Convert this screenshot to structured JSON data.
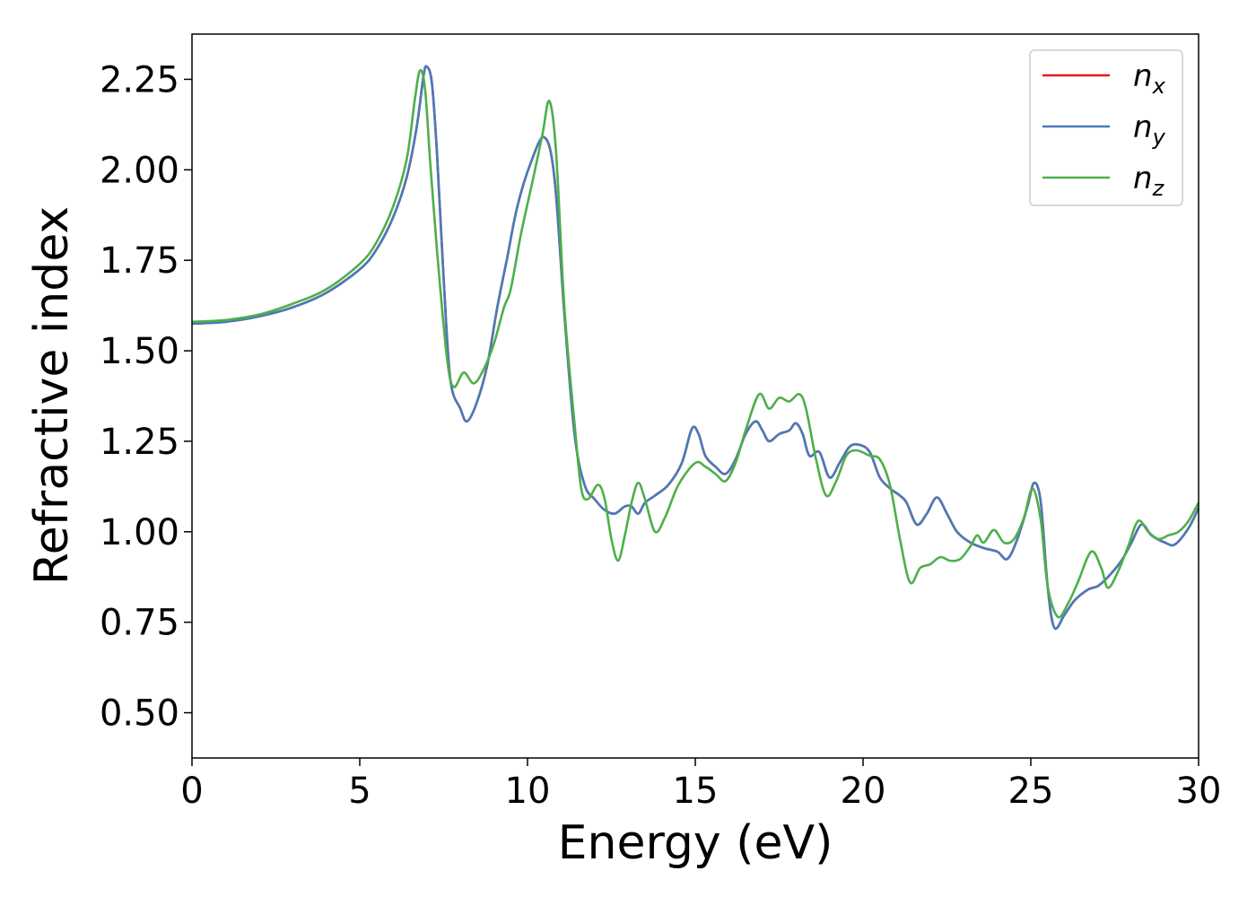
{
  "chart_data": {
    "type": "line",
    "title": "",
    "xlabel": "Energy (eV)",
    "ylabel": "Refractive index",
    "xlim": [
      0,
      30
    ],
    "ylim": [
      0.375,
      2.375
    ],
    "x_ticks": [
      "0",
      "5",
      "10",
      "15",
      "20",
      "25",
      "30"
    ],
    "y_ticks": [
      "0.50",
      "0.75",
      "1.00",
      "1.25",
      "1.50",
      "1.75",
      "2.00",
      "2.25"
    ],
    "grid": false,
    "legend_position": "top-right",
    "series": [
      {
        "name": "n",
        "subscript": "x",
        "color": "#e41a1c",
        "points": [
          [
            0,
            1.575
          ],
          [
            1,
            1.58
          ],
          [
            2,
            1.595
          ],
          [
            3,
            1.62
          ],
          [
            4,
            1.66
          ],
          [
            5,
            1.725
          ],
          [
            5.5,
            1.78
          ],
          [
            6,
            1.87
          ],
          [
            6.4,
            1.98
          ],
          [
            6.7,
            2.12
          ],
          [
            6.9,
            2.26
          ],
          [
            7,
            2.285
          ],
          [
            7.15,
            2.24
          ],
          [
            7.3,
            2.05
          ],
          [
            7.5,
            1.7
          ],
          [
            7.7,
            1.42
          ],
          [
            8,
            1.34
          ],
          [
            8.2,
            1.305
          ],
          [
            8.5,
            1.36
          ],
          [
            8.8,
            1.46
          ],
          [
            9.1,
            1.62
          ],
          [
            9.4,
            1.76
          ],
          [
            9.7,
            1.9
          ],
          [
            10.1,
            2.02
          ],
          [
            10.5,
            2.09
          ],
          [
            10.8,
            1.98
          ],
          [
            11.1,
            1.6
          ],
          [
            11.4,
            1.27
          ],
          [
            11.7,
            1.13
          ],
          [
            12,
            1.09
          ],
          [
            12.3,
            1.06
          ],
          [
            12.6,
            1.05
          ],
          [
            12.9,
            1.07
          ],
          [
            13.1,
            1.07
          ],
          [
            13.3,
            1.05
          ],
          [
            13.5,
            1.08
          ],
          [
            13.8,
            1.1
          ],
          [
            14.2,
            1.13
          ],
          [
            14.6,
            1.19
          ],
          [
            14.9,
            1.285
          ],
          [
            15.1,
            1.27
          ],
          [
            15.3,
            1.21
          ],
          [
            15.6,
            1.18
          ],
          [
            15.9,
            1.16
          ],
          [
            16.2,
            1.2
          ],
          [
            16.5,
            1.27
          ],
          [
            16.8,
            1.305
          ],
          [
            17,
            1.28
          ],
          [
            17.2,
            1.25
          ],
          [
            17.5,
            1.27
          ],
          [
            17.8,
            1.28
          ],
          [
            18,
            1.3
          ],
          [
            18.2,
            1.27
          ],
          [
            18.4,
            1.21
          ],
          [
            18.7,
            1.22
          ],
          [
            19,
            1.15
          ],
          [
            19.3,
            1.19
          ],
          [
            19.6,
            1.235
          ],
          [
            19.9,
            1.24
          ],
          [
            20.2,
            1.22
          ],
          [
            20.5,
            1.15
          ],
          [
            20.8,
            1.12
          ],
          [
            21.1,
            1.1
          ],
          [
            21.3,
            1.08
          ],
          [
            21.6,
            1.02
          ],
          [
            21.9,
            1.05
          ],
          [
            22.2,
            1.095
          ],
          [
            22.5,
            1.05
          ],
          [
            22.8,
            1.0
          ],
          [
            23.2,
            0.97
          ],
          [
            23.6,
            0.955
          ],
          [
            24,
            0.945
          ],
          [
            24.3,
            0.925
          ],
          [
            24.6,
            0.98
          ],
          [
            24.9,
            1.07
          ],
          [
            25.1,
            1.135
          ],
          [
            25.3,
            1.08
          ],
          [
            25.5,
            0.85
          ],
          [
            25.7,
            0.735
          ],
          [
            26,
            0.77
          ],
          [
            26.3,
            0.81
          ],
          [
            26.7,
            0.84
          ],
          [
            27,
            0.85
          ],
          [
            27.3,
            0.875
          ],
          [
            27.7,
            0.92
          ],
          [
            28,
            0.97
          ],
          [
            28.3,
            1.02
          ],
          [
            28.6,
            0.99
          ],
          [
            29,
            0.97
          ],
          [
            29.3,
            0.965
          ],
          [
            29.7,
            1.01
          ],
          [
            30,
            1.065
          ]
        ]
      },
      {
        "name": "n",
        "subscript": "y",
        "color": "#4a7ab8",
        "points": [
          [
            0,
            1.575
          ],
          [
            1,
            1.58
          ],
          [
            2,
            1.595
          ],
          [
            3,
            1.62
          ],
          [
            4,
            1.66
          ],
          [
            5,
            1.725
          ],
          [
            5.5,
            1.78
          ],
          [
            6,
            1.87
          ],
          [
            6.4,
            1.98
          ],
          [
            6.7,
            2.12
          ],
          [
            6.9,
            2.26
          ],
          [
            7,
            2.285
          ],
          [
            7.15,
            2.24
          ],
          [
            7.3,
            2.05
          ],
          [
            7.5,
            1.7
          ],
          [
            7.7,
            1.42
          ],
          [
            8,
            1.34
          ],
          [
            8.2,
            1.305
          ],
          [
            8.5,
            1.36
          ],
          [
            8.8,
            1.46
          ],
          [
            9.1,
            1.62
          ],
          [
            9.4,
            1.76
          ],
          [
            9.7,
            1.9
          ],
          [
            10.1,
            2.02
          ],
          [
            10.5,
            2.09
          ],
          [
            10.8,
            1.98
          ],
          [
            11.1,
            1.6
          ],
          [
            11.4,
            1.27
          ],
          [
            11.7,
            1.13
          ],
          [
            12,
            1.09
          ],
          [
            12.3,
            1.06
          ],
          [
            12.6,
            1.05
          ],
          [
            12.9,
            1.07
          ],
          [
            13.1,
            1.07
          ],
          [
            13.3,
            1.05
          ],
          [
            13.5,
            1.08
          ],
          [
            13.8,
            1.1
          ],
          [
            14.2,
            1.13
          ],
          [
            14.6,
            1.19
          ],
          [
            14.9,
            1.285
          ],
          [
            15.1,
            1.27
          ],
          [
            15.3,
            1.21
          ],
          [
            15.6,
            1.18
          ],
          [
            15.9,
            1.16
          ],
          [
            16.2,
            1.2
          ],
          [
            16.5,
            1.27
          ],
          [
            16.8,
            1.305
          ],
          [
            17,
            1.28
          ],
          [
            17.2,
            1.25
          ],
          [
            17.5,
            1.27
          ],
          [
            17.8,
            1.28
          ],
          [
            18,
            1.3
          ],
          [
            18.2,
            1.27
          ],
          [
            18.4,
            1.21
          ],
          [
            18.7,
            1.22
          ],
          [
            19,
            1.15
          ],
          [
            19.3,
            1.19
          ],
          [
            19.6,
            1.235
          ],
          [
            19.9,
            1.24
          ],
          [
            20.2,
            1.22
          ],
          [
            20.5,
            1.15
          ],
          [
            20.8,
            1.12
          ],
          [
            21.1,
            1.1
          ],
          [
            21.3,
            1.08
          ],
          [
            21.6,
            1.02
          ],
          [
            21.9,
            1.05
          ],
          [
            22.2,
            1.095
          ],
          [
            22.5,
            1.05
          ],
          [
            22.8,
            1.0
          ],
          [
            23.2,
            0.97
          ],
          [
            23.6,
            0.955
          ],
          [
            24,
            0.945
          ],
          [
            24.3,
            0.925
          ],
          [
            24.6,
            0.98
          ],
          [
            24.9,
            1.07
          ],
          [
            25.1,
            1.135
          ],
          [
            25.3,
            1.08
          ],
          [
            25.5,
            0.85
          ],
          [
            25.7,
            0.735
          ],
          [
            26,
            0.77
          ],
          [
            26.3,
            0.81
          ],
          [
            26.7,
            0.84
          ],
          [
            27,
            0.85
          ],
          [
            27.3,
            0.875
          ],
          [
            27.7,
            0.92
          ],
          [
            28,
            0.97
          ],
          [
            28.3,
            1.02
          ],
          [
            28.6,
            0.99
          ],
          [
            29,
            0.97
          ],
          [
            29.3,
            0.965
          ],
          [
            29.7,
            1.01
          ],
          [
            30,
            1.065
          ]
        ]
      },
      {
        "name": "n",
        "subscript": "z",
        "color": "#4daf4a",
        "points": [
          [
            0,
            1.58
          ],
          [
            1,
            1.585
          ],
          [
            2,
            1.6
          ],
          [
            3,
            1.63
          ],
          [
            4,
            1.67
          ],
          [
            5,
            1.74
          ],
          [
            5.5,
            1.8
          ],
          [
            6,
            1.9
          ],
          [
            6.4,
            2.03
          ],
          [
            6.65,
            2.2
          ],
          [
            6.8,
            2.275
          ],
          [
            6.95,
            2.22
          ],
          [
            7.1,
            2.02
          ],
          [
            7.3,
            1.78
          ],
          [
            7.6,
            1.48
          ],
          [
            7.8,
            1.4
          ],
          [
            8.1,
            1.44
          ],
          [
            8.4,
            1.41
          ],
          [
            8.7,
            1.45
          ],
          [
            9,
            1.52
          ],
          [
            9.3,
            1.62
          ],
          [
            9.5,
            1.67
          ],
          [
            9.8,
            1.82
          ],
          [
            10.2,
            1.99
          ],
          [
            10.45,
            2.1
          ],
          [
            10.65,
            2.19
          ],
          [
            10.85,
            2.05
          ],
          [
            11.1,
            1.62
          ],
          [
            11.4,
            1.3
          ],
          [
            11.6,
            1.12
          ],
          [
            11.8,
            1.09
          ],
          [
            12.1,
            1.13
          ],
          [
            12.3,
            1.09
          ],
          [
            12.5,
            0.98
          ],
          [
            12.7,
            0.92
          ],
          [
            12.9,
            0.99
          ],
          [
            13.1,
            1.08
          ],
          [
            13.3,
            1.135
          ],
          [
            13.5,
            1.09
          ],
          [
            13.8,
            1.0
          ],
          [
            14.1,
            1.04
          ],
          [
            14.5,
            1.13
          ],
          [
            15,
            1.19
          ],
          [
            15.3,
            1.18
          ],
          [
            15.6,
            1.16
          ],
          [
            15.9,
            1.14
          ],
          [
            16.2,
            1.19
          ],
          [
            16.5,
            1.28
          ],
          [
            16.9,
            1.38
          ],
          [
            17.2,
            1.34
          ],
          [
            17.5,
            1.37
          ],
          [
            17.8,
            1.36
          ],
          [
            18.1,
            1.38
          ],
          [
            18.3,
            1.34
          ],
          [
            18.6,
            1.2
          ],
          [
            18.9,
            1.1
          ],
          [
            19.2,
            1.14
          ],
          [
            19.5,
            1.21
          ],
          [
            19.8,
            1.225
          ],
          [
            20.2,
            1.21
          ],
          [
            20.5,
            1.2
          ],
          [
            20.8,
            1.13
          ],
          [
            21.1,
            0.98
          ],
          [
            21.4,
            0.86
          ],
          [
            21.7,
            0.9
          ],
          [
            22,
            0.91
          ],
          [
            22.3,
            0.93
          ],
          [
            22.6,
            0.92
          ],
          [
            22.9,
            0.925
          ],
          [
            23.2,
            0.96
          ],
          [
            23.4,
            0.99
          ],
          [
            23.6,
            0.97
          ],
          [
            23.9,
            1.005
          ],
          [
            24.2,
            0.97
          ],
          [
            24.5,
            0.98
          ],
          [
            24.8,
            1.04
          ],
          [
            25.05,
            1.12
          ],
          [
            25.3,
            1.03
          ],
          [
            25.5,
            0.85
          ],
          [
            25.8,
            0.765
          ],
          [
            26.1,
            0.8
          ],
          [
            26.4,
            0.86
          ],
          [
            26.8,
            0.945
          ],
          [
            27.1,
            0.9
          ],
          [
            27.3,
            0.845
          ],
          [
            27.6,
            0.89
          ],
          [
            27.9,
            0.96
          ],
          [
            28.2,
            1.03
          ],
          [
            28.5,
            1.0
          ],
          [
            28.8,
            0.98
          ],
          [
            29.1,
            0.99
          ],
          [
            29.4,
            1.0
          ],
          [
            29.7,
            1.03
          ],
          [
            30,
            1.08
          ]
        ]
      }
    ]
  }
}
